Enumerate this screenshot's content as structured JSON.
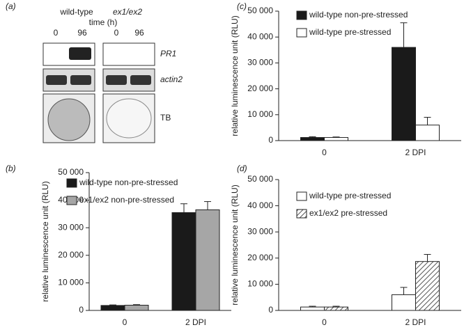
{
  "panel_a": {
    "label": "(a)",
    "groups": [
      "wild-type",
      "ex1/ex2"
    ],
    "time_label": "time (h)",
    "times": [
      "0",
      "96",
      "0",
      "96"
    ],
    "rows": [
      "PR1",
      "actin2",
      "TB"
    ]
  },
  "chart_data": [
    {
      "type": "bar",
      "label": "(b)",
      "ylabel": "relative luminescence unit (RLU)",
      "categories": [
        "0",
        "2 DPI"
      ],
      "series": [
        {
          "name": "wild-type non-pre-stressed",
          "color": "#1a1a1a",
          "values": [
            1800,
            35500
          ],
          "errors": [
            200,
            3200
          ]
        },
        {
          "name": "ex1/ex2 non-pre-stressed",
          "color": "#a6a6a6",
          "values": [
            1900,
            36500
          ],
          "errors": [
            200,
            3000
          ]
        }
      ],
      "ylim": [
        0,
        50000
      ],
      "yticks": [
        0,
        {
          "value": 10000,
          "label": "10 000"
        },
        {
          "value": 20000,
          "label": "20 000"
        },
        {
          "value": 30000,
          "label": "30 000"
        },
        {
          "value": 40000,
          "label": "40 000"
        },
        {
          "value": 50000,
          "label": "50 000"
        }
      ]
    },
    {
      "type": "bar",
      "label": "(c)",
      "ylabel": "relative luminescence unit (RLU)",
      "categories": [
        "0",
        "2 DPI"
      ],
      "series": [
        {
          "name": "wild-type non-pre-stressed",
          "color": "#1a1a1a",
          "values": [
            1200,
            36000
          ],
          "errors": [
            300,
            9500
          ]
        },
        {
          "name": "wild-type pre-stressed",
          "color": "#ffffff",
          "values": [
            1200,
            6000
          ],
          "errors": [
            200,
            3000
          ]
        }
      ],
      "ylim": [
        0,
        50000
      ],
      "yticks": [
        0,
        {
          "value": 10000,
          "label": "10 000"
        },
        {
          "value": 20000,
          "label": "20 000"
        },
        {
          "value": 30000,
          "label": "30 000"
        },
        {
          "value": 40000,
          "label": "40 000"
        },
        {
          "value": 50000,
          "label": "50 000"
        }
      ]
    },
    {
      "type": "bar",
      "label": "(d)",
      "ylabel": "relative luminescence unit (RLU)",
      "categories": [
        "0",
        "2 DPI"
      ],
      "series": [
        {
          "name": "wild-type pre-stressed",
          "color": "#ffffff",
          "values": [
            1300,
            6000
          ],
          "errors": [
            300,
            2800
          ]
        },
        {
          "name": "ex1/ex2 pre-stressed",
          "color": "#ffffff",
          "hatch": true,
          "values": [
            1300,
            18700
          ],
          "errors": [
            300,
            2700
          ]
        }
      ],
      "ylim": [
        0,
        50000
      ],
      "yticks": [
        0,
        {
          "value": 10000,
          "label": "10 000"
        },
        {
          "value": 20000,
          "label": "20 000"
        },
        {
          "value": 30000,
          "label": "30 000"
        },
        {
          "value": 40000,
          "label": "40 000"
        },
        {
          "value": 50000,
          "label": "50 000"
        }
      ]
    }
  ]
}
